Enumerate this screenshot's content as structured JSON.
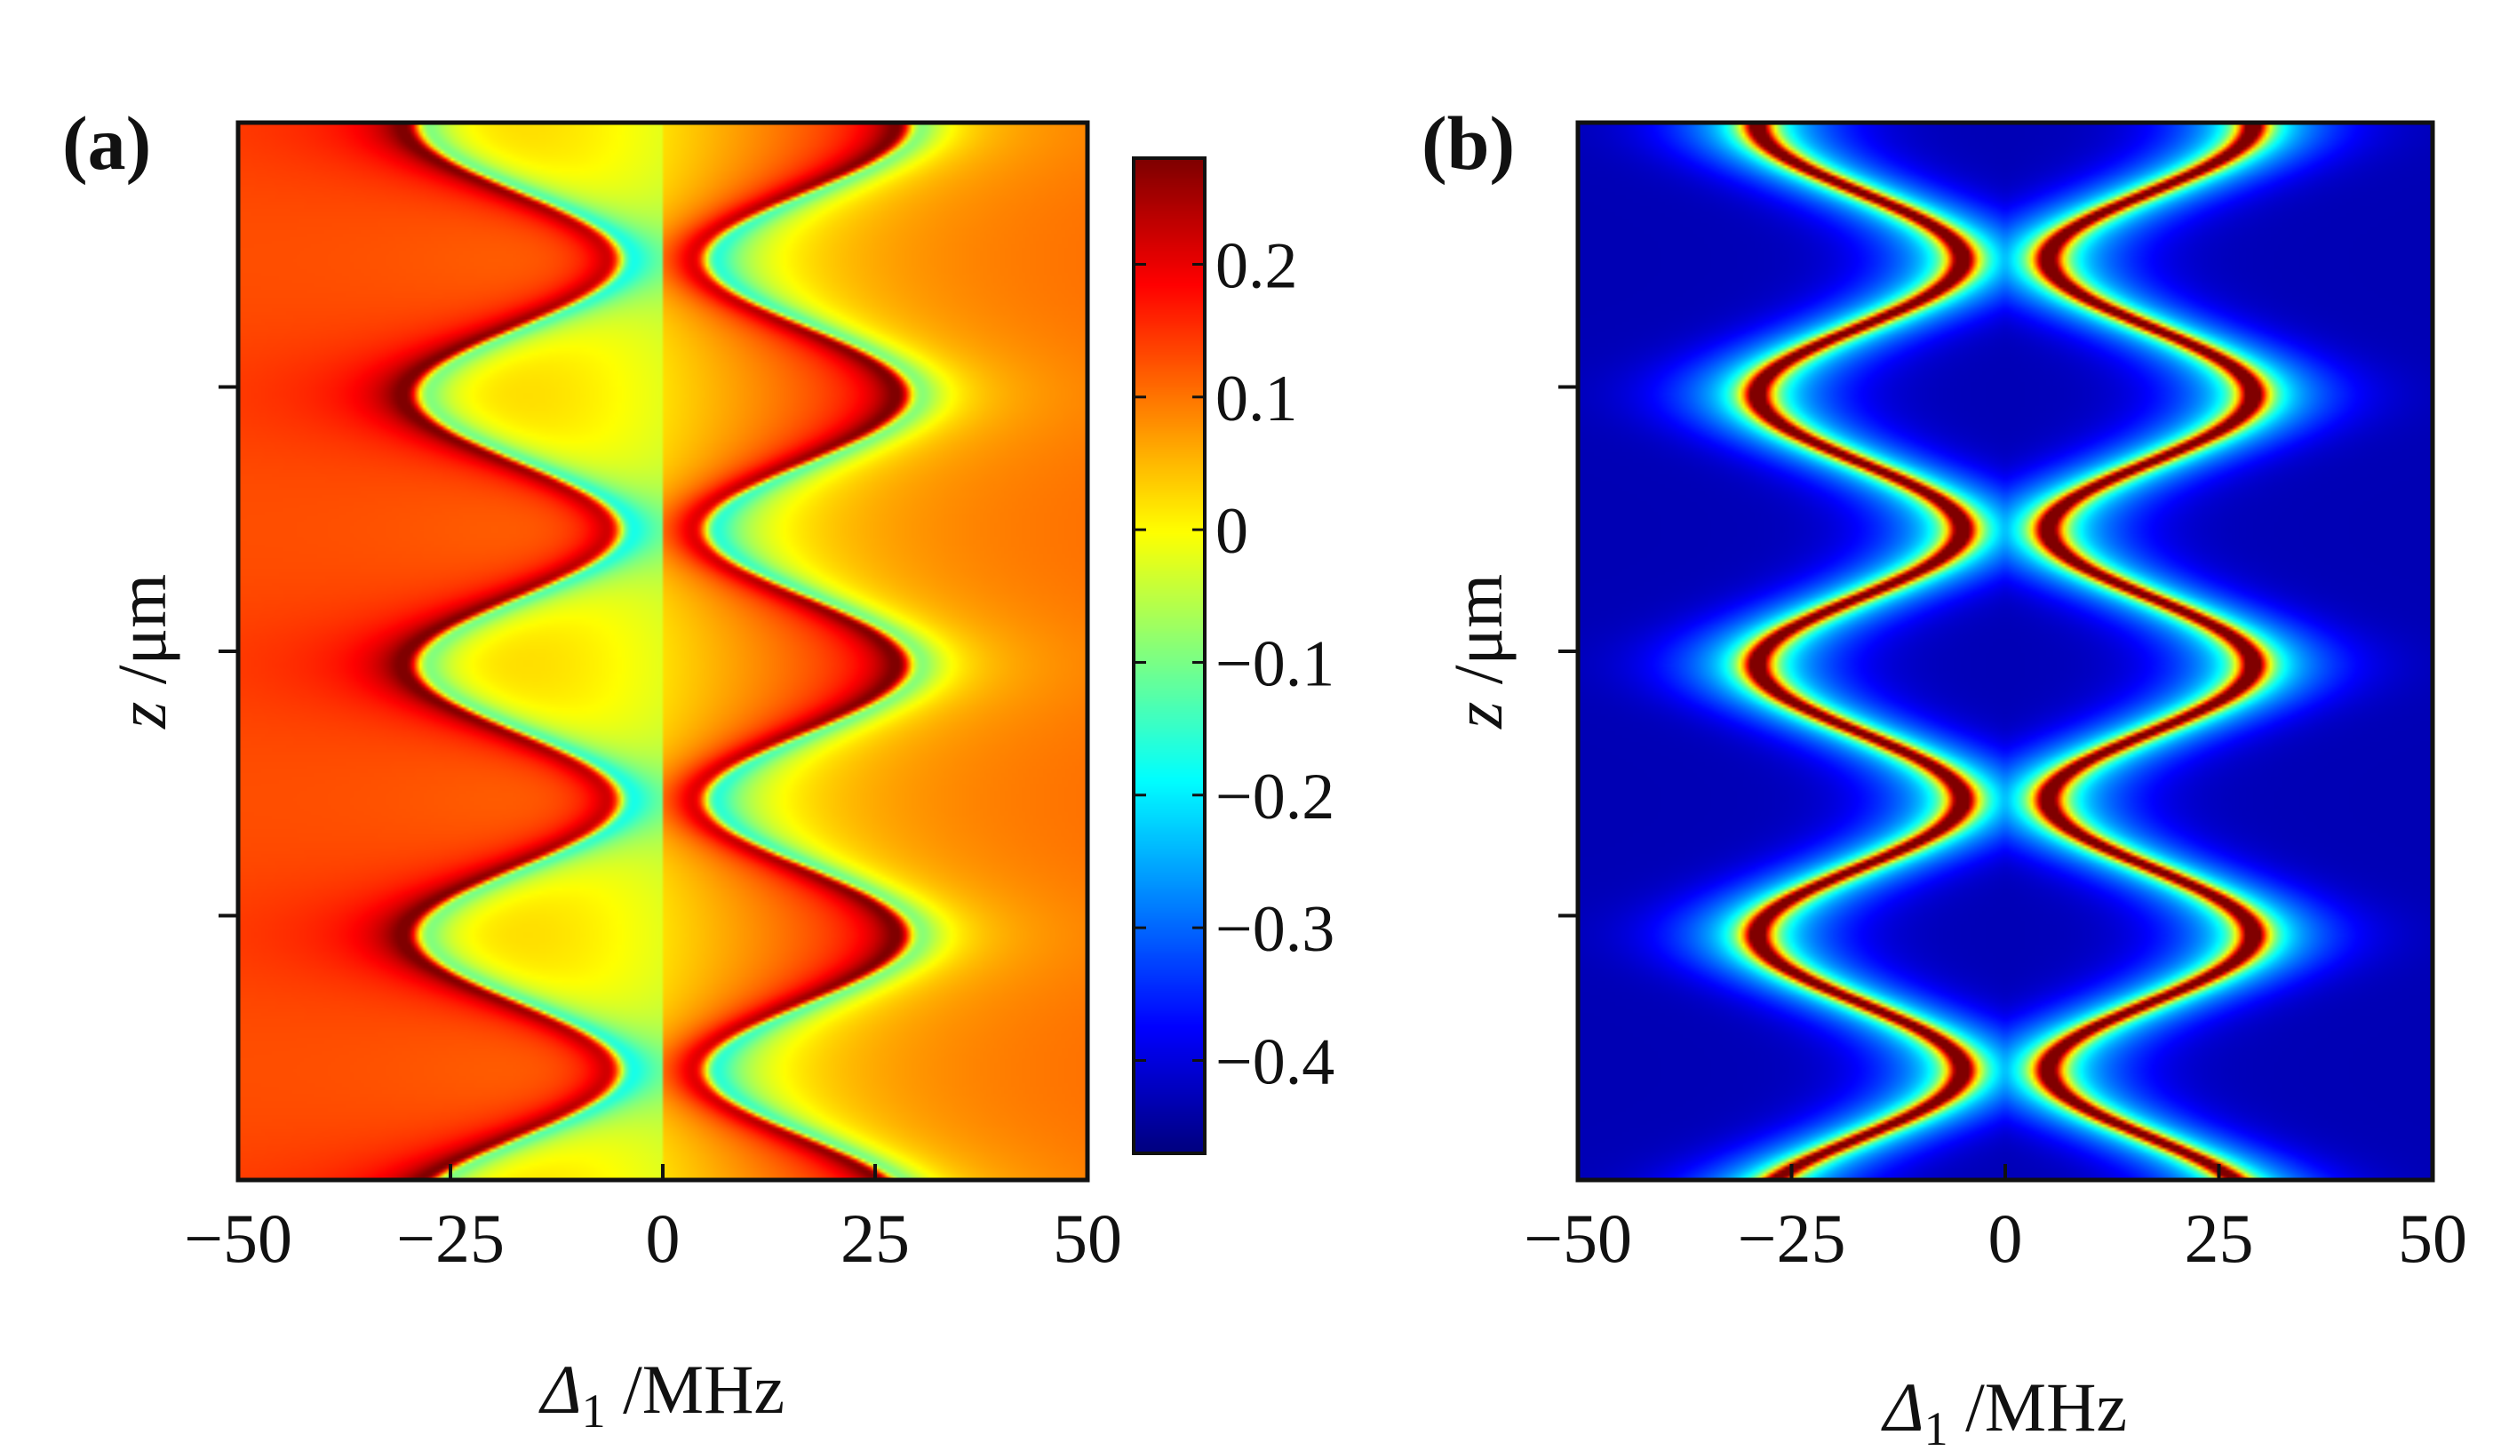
{
  "chart_data": [
    {
      "type": "heatmap",
      "panel_label": "(a)",
      "xlabel_sym": "Δ",
      "xlabel_sub": "1",
      "xlabel_unit": " /MHz",
      "ylabel_sym": "z",
      "ylabel_unit": " /μm",
      "xlim": [
        -50,
        50
      ],
      "x_ticks": [
        -50,
        -25,
        0,
        25,
        50
      ],
      "x_tick_labels": [
        "−50",
        "−25",
        "0",
        "25",
        "50"
      ],
      "y_tick_count": 3,
      "colormap": "jet",
      "colorbar": {
        "range": [
          -0.47,
          0.28
        ],
        "ticks": [
          0.2,
          0.1,
          0,
          -0.1,
          -0.2,
          -0.3,
          -0.4
        ],
        "tick_labels": [
          "0.2",
          "0.1",
          "0",
          "−0.1",
          "−0.2",
          "−0.3",
          "−0.4"
        ]
      },
      "description_model": "dispersive",
      "resonance_center_MHz": 17,
      "resonance_amplitude_MHz": 12,
      "oscillation_periods_shown": 3.9
    },
    {
      "type": "heatmap",
      "panel_label": "(b)",
      "xlabel_sym": "Δ",
      "xlabel_sub": "1",
      "xlabel_unit": " /MHz",
      "ylabel_sym": "z",
      "ylabel_unit": " /μm",
      "xlim": [
        -50,
        50
      ],
      "x_ticks": [
        -50,
        -25,
        0,
        25,
        50
      ],
      "x_tick_labels": [
        "−50",
        "−25",
        "0",
        "25",
        "50"
      ],
      "y_tick_count": 3,
      "colormap": "jet",
      "description_model": "absorptive",
      "resonance_center_MHz": 17,
      "resonance_amplitude_MHz": 12,
      "oscillation_periods_shown": 3.9
    }
  ]
}
